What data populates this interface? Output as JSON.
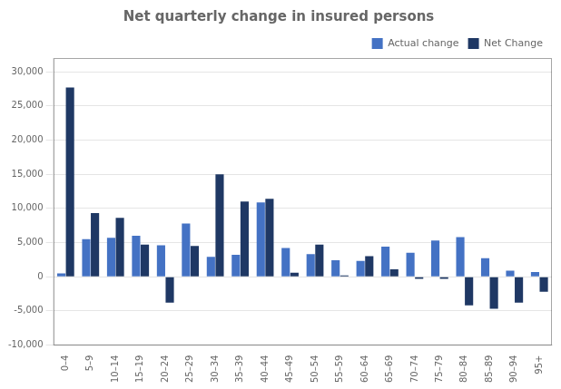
{
  "chart_data": {
    "type": "bar",
    "title": "Net quarterly change in insured persons",
    "categories": [
      "0–4",
      "5–9",
      "10–14",
      "15–19",
      "20–24",
      "25–29",
      "30–34",
      "35–39",
      "40–44",
      "45–49",
      "50–54",
      "55–59",
      "60–64",
      "65–69",
      "70–74",
      "75–79",
      "80–84",
      "85–89",
      "90–94",
      "95+"
    ],
    "series": [
      {
        "name": "Actual change",
        "color": "#4472C4",
        "values": [
          500,
          5500,
          5700,
          6000,
          4600,
          7800,
          2900,
          3200,
          10865,
          4200,
          3300,
          2400,
          2300,
          4400,
          3500,
          5300,
          5800,
          2700,
          900,
          700
        ]
      },
      {
        "name": "Net Change",
        "color": "#1F3864",
        "values": [
          27689,
          9300,
          8600,
          4700,
          -3800,
          4500,
          15000,
          11000,
          11400,
          600,
          4700,
          200,
          3000,
          1100,
          -300,
          -300,
          -4200,
          -4700,
          -3800,
          -2200
        ]
      }
    ],
    "ylim": [
      -10000,
      32000
    ],
    "yticks": [
      {
        "value": -10000,
        "label": "-10,000"
      },
      {
        "value": -5000,
        "label": "-5,000"
      },
      0,
      {
        "value": 5000,
        "label": "5,000"
      },
      {
        "value": 10000,
        "label": "10,000"
      },
      {
        "value": 15000,
        "label": "15,000"
      },
      {
        "value": 20000,
        "label": "20,000"
      },
      {
        "value": 25000,
        "label": "25,000"
      },
      {
        "value": 30000,
        "label": "30,000"
      }
    ],
    "grid": true,
    "legend": "upper right"
  }
}
